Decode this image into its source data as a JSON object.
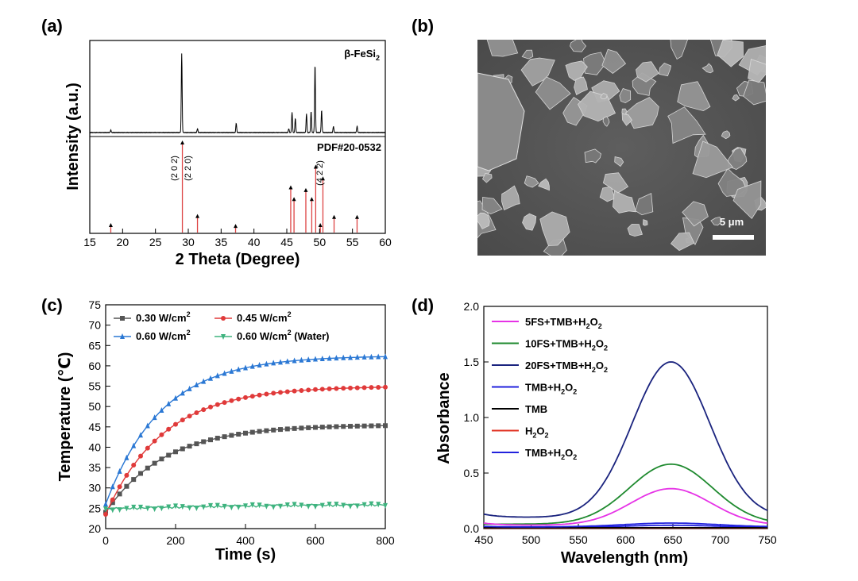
{
  "panels": {
    "a": "(a)",
    "b": "(b)",
    "c": "(c)",
    "d": "(d)"
  },
  "sem": {
    "scale_bar_label": "5 μm"
  },
  "chart_data": [
    {
      "id": "a",
      "type": "line",
      "xlabel": "2 Theta (Degree)",
      "ylabel": "Intensity (a.u.)",
      "xlim": [
        15,
        60
      ],
      "xticks": [
        "15",
        "20",
        "25",
        "30",
        "35",
        "40",
        "45",
        "50",
        "55",
        "60"
      ],
      "sample_label": "β-FeSi",
      "sample_label_sub": "2",
      "reference_label": "PDF#20-0532",
      "peak_labels": [
        "(2 0 2)",
        "(2 2 0)",
        "(4 2 2)"
      ],
      "pattern_peaks": [
        {
          "x": 18.2,
          "h": 0.03
        },
        {
          "x": 29.0,
          "h": 1.0
        },
        {
          "x": 31.4,
          "h": 0.05
        },
        {
          "x": 37.3,
          "h": 0.12
        },
        {
          "x": 45.3,
          "h": 0.05
        },
        {
          "x": 45.8,
          "h": 0.26
        },
        {
          "x": 46.3,
          "h": 0.18
        },
        {
          "x": 48.0,
          "h": 0.24
        },
        {
          "x": 48.7,
          "h": 0.27
        },
        {
          "x": 49.3,
          "h": 0.86
        },
        {
          "x": 50.3,
          "h": 0.28
        },
        {
          "x": 52.1,
          "h": 0.08
        },
        {
          "x": 55.7,
          "h": 0.08
        }
      ],
      "reference_peaks": [
        {
          "x": 18.2,
          "h": 0.08
        },
        {
          "x": 29.1,
          "h": 1.0
        },
        {
          "x": 31.4,
          "h": 0.18
        },
        {
          "x": 37.2,
          "h": 0.07
        },
        {
          "x": 45.6,
          "h": 0.5
        },
        {
          "x": 46.1,
          "h": 0.37
        },
        {
          "x": 47.9,
          "h": 0.47
        },
        {
          "x": 48.8,
          "h": 0.37
        },
        {
          "x": 49.4,
          "h": 0.73
        },
        {
          "x": 50.1,
          "h": 0.08
        },
        {
          "x": 50.5,
          "h": 0.6
        },
        {
          "x": 52.2,
          "h": 0.17
        },
        {
          "x": 55.7,
          "h": 0.17
        }
      ]
    },
    {
      "id": "c",
      "type": "line",
      "xlabel": "Time (s)",
      "ylabel": "Temperature (℃)",
      "xlim": [
        0,
        800
      ],
      "ylim": [
        20,
        75
      ],
      "xticks": [
        "0",
        "200",
        "400",
        "600",
        "800"
      ],
      "yticks": [
        "20",
        "25",
        "30",
        "35",
        "40",
        "45",
        "50",
        "55",
        "60",
        "65",
        "70",
        "75"
      ],
      "legend_placement": "top-left",
      "series": [
        {
          "name": "0.30 W/cm",
          "name_sup": "2",
          "name_suffix": "",
          "color": "#555555",
          "marker": "square",
          "T0": 24.0,
          "Tmax": 45.5,
          "tau": 170,
          "noise": 0
        },
        {
          "name": "0.45 W/cm",
          "name_sup": "2",
          "name_suffix": "",
          "color": "#e03a3a",
          "marker": "circle",
          "T0": 23.5,
          "Tmax": 55.0,
          "tau": 165,
          "noise": 0
        },
        {
          "name": "0.60 W/cm",
          "name_sup": "2",
          "name_suffix": "",
          "color": "#2b78d4",
          "marker": "triangle-up",
          "T0": 26.0,
          "Tmax": 62.5,
          "tau": 160,
          "noise": 0
        },
        {
          "name": "0.60 W/cm",
          "name_sup": "2",
          "name_suffix": " (Water)",
          "color": "#3fb37f",
          "marker": "triangle-down",
          "T0": 24.8,
          "Tmax": 26.0,
          "tau": 400,
          "noise": 0.3
        }
      ]
    },
    {
      "id": "d",
      "type": "line",
      "xlabel": "Wavelength (nm)",
      "ylabel": "Absorbance",
      "xlim": [
        450,
        750
      ],
      "ylim": [
        0,
        2.0
      ],
      "xticks": [
        "450",
        "500",
        "550",
        "600",
        "650",
        "700",
        "750"
      ],
      "yticks": [
        "0.0",
        "0.5",
        "1.0",
        "1.5",
        "2.0"
      ],
      "legend_placement": "top-left",
      "series": [
        {
          "name": "5FS+TMB+H",
          "name_sub": "2",
          "name_mid": "O",
          "name_sub2": "2",
          "color": "#e633e6",
          "peak": 0.33,
          "base": 0.03,
          "start": 0.05,
          "center": 648,
          "width": 60
        },
        {
          "name": "10FS+TMB+H",
          "name_sub": "2",
          "name_mid": "O",
          "name_sub2": "2",
          "color": "#1f8a2f",
          "peak": 0.54,
          "base": 0.04,
          "start": 0.04,
          "center": 648,
          "width": 62
        },
        {
          "name": "20FS+TMB+H",
          "name_sub": "2",
          "name_mid": "O",
          "name_sub2": "2",
          "color": "#1a237e",
          "peak": 1.4,
          "base": 0.1,
          "start": 0.13,
          "center": 648,
          "width": 58
        },
        {
          "name": "TMB+H",
          "name_sub": "2",
          "name_mid": "O",
          "name_sub2": "2",
          "color": "#2222dd",
          "peak": 0.035,
          "base": 0.015,
          "start": 0.02,
          "center": 648,
          "width": 70
        },
        {
          "name": "TMB",
          "name_sub": "",
          "name_mid": "",
          "name_sub2": "",
          "color": "#000000",
          "peak": 0.0,
          "base": 0.008,
          "start": 0.008,
          "center": 648,
          "width": 60
        },
        {
          "name": "H",
          "name_sub": "2",
          "name_mid": "O",
          "name_sub2": "2",
          "color": "#e03020",
          "peak": 0.0,
          "base": 0.004,
          "start": 0.004,
          "center": 648,
          "width": 60
        },
        {
          "name": "TMB+H",
          "name_sub": "2",
          "name_mid": "O",
          "name_sub2": "2",
          "color": "#2222dd",
          "peak": 0.02,
          "base": 0.01,
          "start": 0.01,
          "center": 648,
          "width": 70
        }
      ]
    }
  ]
}
